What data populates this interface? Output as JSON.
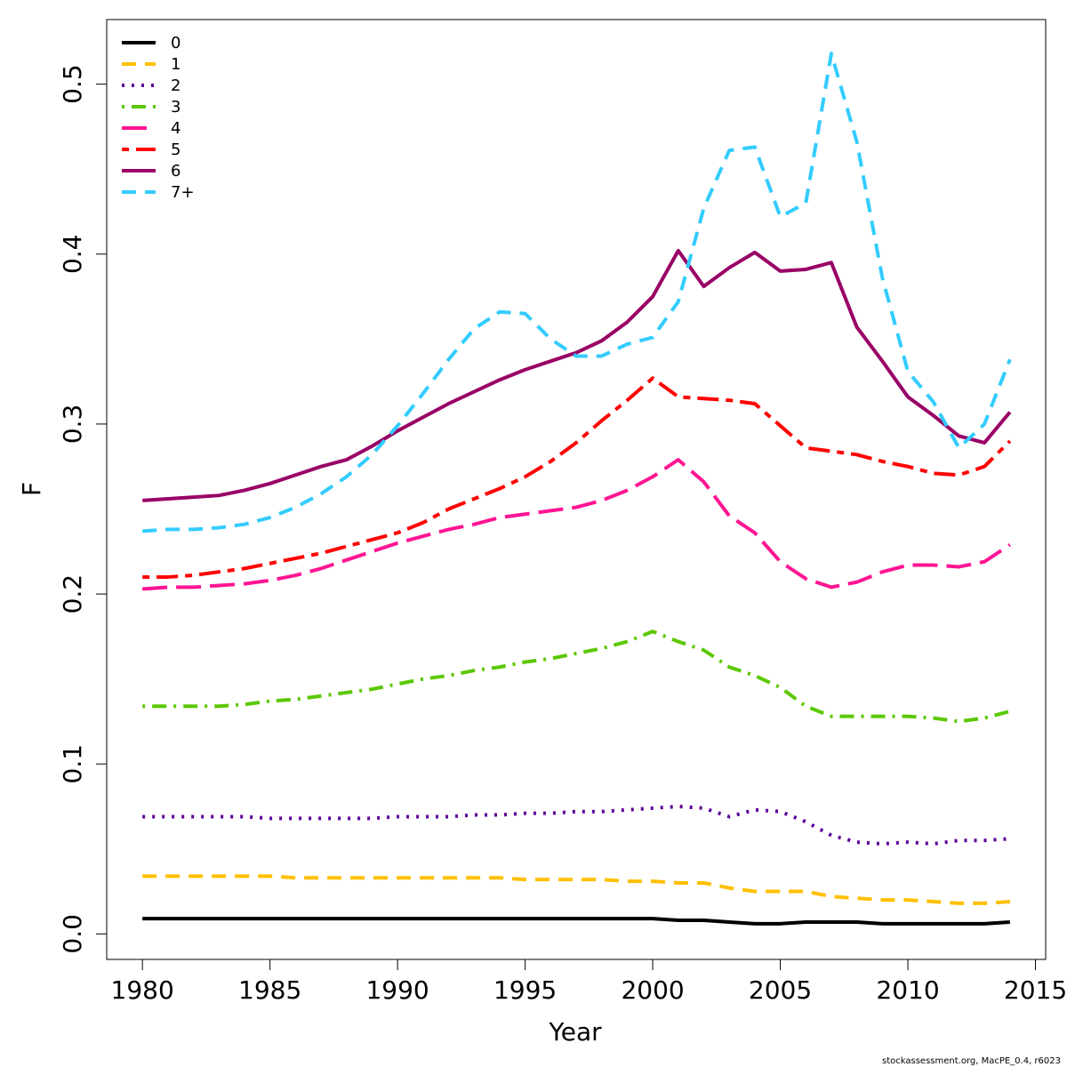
{
  "chart_data": {
    "type": "line",
    "xlabel": "Year",
    "ylabel": "F",
    "xlim": [
      1978.6,
      2015.4
    ],
    "ylim": [
      -0.015,
      0.538
    ],
    "xticks": [
      1980,
      1985,
      1990,
      1995,
      2000,
      2005,
      2010,
      2015
    ],
    "xtick_labels": [
      "1980",
      "1985",
      "1990",
      "1995",
      "2000",
      "2005",
      "2010",
      "2015"
    ],
    "yticks": [
      0.0,
      0.1,
      0.2,
      0.3,
      0.4,
      0.5
    ],
    "ytick_labels": [
      "0.0",
      "0.1",
      "0.2",
      "0.3",
      "0.4",
      "0.5"
    ],
    "legend_position": "top-left",
    "x": [
      1980,
      1981,
      1982,
      1983,
      1984,
      1985,
      1986,
      1987,
      1988,
      1989,
      1990,
      1991,
      1992,
      1993,
      1994,
      1995,
      1996,
      1997,
      1998,
      1999,
      2000,
      2001,
      2002,
      2003,
      2004,
      2005,
      2006,
      2007,
      2008,
      2009,
      2010,
      2011,
      2012,
      2013,
      2014
    ],
    "series": [
      {
        "name": "0",
        "color": "#000000",
        "dash": "solid",
        "values": [
          0.009,
          0.009,
          0.009,
          0.009,
          0.009,
          0.009,
          0.009,
          0.009,
          0.009,
          0.009,
          0.009,
          0.009,
          0.009,
          0.009,
          0.009,
          0.009,
          0.009,
          0.009,
          0.009,
          0.009,
          0.009,
          0.008,
          0.008,
          0.007,
          0.006,
          0.006,
          0.007,
          0.007,
          0.007,
          0.006,
          0.006,
          0.006,
          0.006,
          0.006,
          0.007
        ]
      },
      {
        "name": "1",
        "color": "#FFC000",
        "dash": "dashed",
        "values": [
          0.034,
          0.034,
          0.034,
          0.034,
          0.034,
          0.034,
          0.033,
          0.033,
          0.033,
          0.033,
          0.033,
          0.033,
          0.033,
          0.033,
          0.033,
          0.032,
          0.032,
          0.032,
          0.032,
          0.031,
          0.031,
          0.03,
          0.03,
          0.027,
          0.025,
          0.025,
          0.025,
          0.022,
          0.021,
          0.02,
          0.02,
          0.019,
          0.018,
          0.018,
          0.019
        ]
      },
      {
        "name": "2",
        "color": "#5C0099",
        "dash": "dotted",
        "values": [
          0.069,
          0.069,
          0.069,
          0.069,
          0.069,
          0.068,
          0.068,
          0.068,
          0.068,
          0.068,
          0.069,
          0.069,
          0.069,
          0.07,
          0.07,
          0.071,
          0.071,
          0.072,
          0.072,
          0.073,
          0.074,
          0.075,
          0.074,
          0.069,
          0.073,
          0.072,
          0.066,
          0.058,
          0.054,
          0.053,
          0.054,
          0.053,
          0.055,
          0.055,
          0.056
        ]
      },
      {
        "name": "3",
        "color": "#5BC800",
        "dash": "dotdash",
        "values": [
          0.134,
          0.134,
          0.134,
          0.134,
          0.135,
          0.137,
          0.138,
          0.14,
          0.142,
          0.144,
          0.147,
          0.15,
          0.152,
          0.155,
          0.157,
          0.16,
          0.162,
          0.165,
          0.168,
          0.172,
          0.178,
          0.172,
          0.167,
          0.157,
          0.152,
          0.145,
          0.134,
          0.128,
          0.128,
          0.128,
          0.128,
          0.127,
          0.125,
          0.127,
          0.131
        ]
      },
      {
        "name": "4",
        "color": "#FF1493",
        "dash": "longdash",
        "values": [
          0.203,
          0.204,
          0.204,
          0.205,
          0.206,
          0.208,
          0.211,
          0.215,
          0.22,
          0.225,
          0.23,
          0.234,
          0.238,
          0.241,
          0.245,
          0.247,
          0.249,
          0.251,
          0.255,
          0.261,
          0.269,
          0.279,
          0.266,
          0.246,
          0.236,
          0.219,
          0.209,
          0.204,
          0.207,
          0.213,
          0.217,
          0.217,
          0.216,
          0.219,
          0.229
        ]
      },
      {
        "name": "5",
        "color": "#FF0000",
        "dash": "twodash",
        "values": [
          0.21,
          0.21,
          0.211,
          0.213,
          0.215,
          0.218,
          0.221,
          0.224,
          0.228,
          0.232,
          0.236,
          0.242,
          0.25,
          0.256,
          0.262,
          0.269,
          0.278,
          0.289,
          0.302,
          0.314,
          0.327,
          0.316,
          0.315,
          0.314,
          0.312,
          0.299,
          0.286,
          0.284,
          0.282,
          0.278,
          0.275,
          0.271,
          0.27,
          0.275,
          0.29
        ]
      },
      {
        "name": "6",
        "color": "#990066",
        "dash": "solid",
        "values": [
          0.255,
          0.256,
          0.257,
          0.258,
          0.261,
          0.265,
          0.27,
          0.275,
          0.279,
          0.287,
          0.296,
          0.304,
          0.312,
          0.319,
          0.326,
          0.332,
          0.337,
          0.342,
          0.349,
          0.36,
          0.375,
          0.402,
          0.381,
          0.392,
          0.401,
          0.39,
          0.391,
          0.395,
          0.357,
          0.337,
          0.316,
          0.305,
          0.293,
          0.289,
          0.307
        ]
      },
      {
        "name": "7+",
        "color": "#33CCFF",
        "dash": "dashed",
        "values": [
          0.237,
          0.238,
          0.238,
          0.239,
          0.241,
          0.245,
          0.251,
          0.259,
          0.269,
          0.282,
          0.299,
          0.318,
          0.338,
          0.356,
          0.366,
          0.365,
          0.35,
          0.34,
          0.34,
          0.347,
          0.351,
          0.372,
          0.427,
          0.461,
          0.463,
          0.422,
          0.43,
          0.518,
          0.466,
          0.386,
          0.331,
          0.313,
          0.286,
          0.3,
          0.338
        ]
      }
    ]
  },
  "footer": {
    "credit": "stockassessment.org, MacPE_0.4, r6023"
  }
}
